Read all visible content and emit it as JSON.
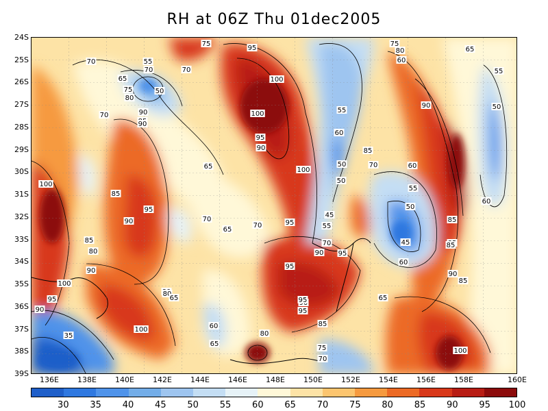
{
  "title": "RH at 06Z Thu 01dec2005",
  "y_ticks": [
    "24S",
    "25S",
    "26S",
    "27S",
    "28S",
    "29S",
    "30S",
    "31S",
    "32S",
    "33S",
    "34S",
    "35S",
    "36S",
    "37S",
    "38S",
    "39S"
  ],
  "x_ticks": [
    "136E",
    "138E",
    "140E",
    "142E",
    "144E",
    "146E",
    "148E",
    "150E",
    "152E",
    "154E",
    "156E",
    "158E",
    "160E"
  ],
  "colorbar": {
    "labels": [
      "30",
      "35",
      "40",
      "45",
      "50",
      "55",
      "60",
      "65",
      "70",
      "75",
      "80",
      "85",
      "90",
      "95",
      "100"
    ],
    "colors": [
      "#1f5fc9",
      "#2f78e0",
      "#4f93ea",
      "#73ade8",
      "#9ec5f0",
      "#c4def4",
      "#e6f2f7",
      "#fff8d8",
      "#fde3a6",
      "#fcc56f",
      "#f69a3f",
      "#ec6a25",
      "#d8381a",
      "#b81d14",
      "#8c0b0b"
    ]
  },
  "contour_labels": [
    {
      "text": "75"
    },
    {
      "text": "95"
    },
    {
      "text": "75"
    },
    {
      "text": "80"
    },
    {
      "text": "65"
    },
    {
      "text": "60"
    },
    {
      "text": "55"
    },
    {
      "text": "70"
    },
    {
      "text": "70"
    },
    {
      "text": "65"
    },
    {
      "text": "70"
    },
    {
      "text": "100"
    },
    {
      "text": "50"
    },
    {
      "text": "75"
    },
    {
      "text": "80"
    },
    {
      "text": "90"
    },
    {
      "text": "85"
    },
    {
      "text": "90"
    },
    {
      "text": "70"
    },
    {
      "text": "55"
    },
    {
      "text": "100"
    },
    {
      "text": "90"
    },
    {
      "text": "50"
    },
    {
      "text": "95"
    },
    {
      "text": "55"
    },
    {
      "text": "90"
    },
    {
      "text": "60"
    },
    {
      "text": "85"
    },
    {
      "text": "100"
    },
    {
      "text": "65"
    },
    {
      "text": "70"
    },
    {
      "text": "50"
    },
    {
      "text": "100"
    },
    {
      "text": "50"
    },
    {
      "text": "55"
    },
    {
      "text": "85"
    },
    {
      "text": "60"
    },
    {
      "text": "90"
    },
    {
      "text": "95"
    },
    {
      "text": "90"
    },
    {
      "text": "50"
    },
    {
      "text": "85"
    },
    {
      "text": "70"
    },
    {
      "text": "65"
    },
    {
      "text": "70"
    },
    {
      "text": "95"
    },
    {
      "text": "45"
    },
    {
      "text": "55"
    },
    {
      "text": "45"
    },
    {
      "text": "85"
    },
    {
      "text": "60"
    },
    {
      "text": "85"
    },
    {
      "text": "70"
    },
    {
      "text": "95"
    },
    {
      "text": "90"
    },
    {
      "text": "80"
    },
    {
      "text": "90"
    },
    {
      "text": "80"
    },
    {
      "text": "100"
    },
    {
      "text": "95"
    },
    {
      "text": "90"
    },
    {
      "text": "80"
    },
    {
      "text": "65"
    },
    {
      "text": "85"
    },
    {
      "text": "95"
    },
    {
      "text": "90"
    },
    {
      "text": "95"
    },
    {
      "text": "85"
    },
    {
      "text": "100"
    },
    {
      "text": "80"
    },
    {
      "text": "65"
    },
    {
      "text": "60"
    },
    {
      "text": "60"
    },
    {
      "text": "75"
    },
    {
      "text": "95"
    },
    {
      "text": "70"
    },
    {
      "text": "90"
    },
    {
      "text": "85"
    },
    {
      "text": "65"
    },
    {
      "text": "100"
    },
    {
      "text": "35"
    }
  ]
}
